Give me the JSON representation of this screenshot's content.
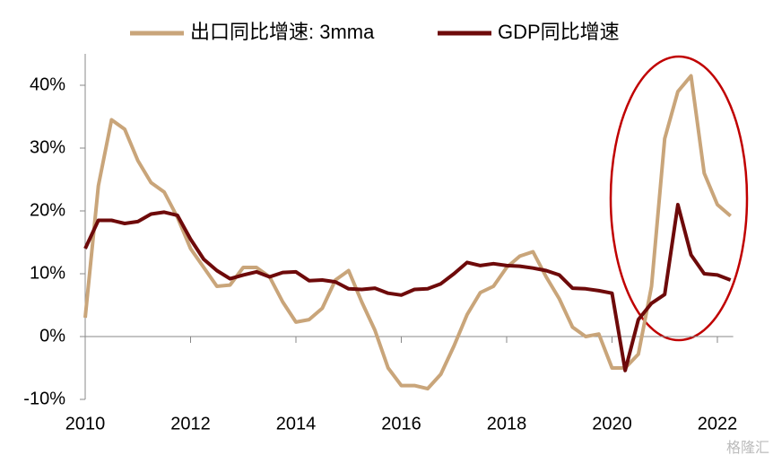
{
  "chart_data": {
    "type": "line",
    "x": [
      2010,
      2010.25,
      2010.5,
      2010.75,
      2011,
      2011.25,
      2011.5,
      2011.75,
      2012,
      2012.25,
      2012.5,
      2012.75,
      2013,
      2013.25,
      2013.5,
      2013.75,
      2014,
      2014.25,
      2014.5,
      2014.75,
      2015,
      2015.25,
      2015.5,
      2015.75,
      2016,
      2016.25,
      2016.5,
      2016.75,
      2017,
      2017.25,
      2017.5,
      2017.75,
      2018,
      2018.25,
      2018.5,
      2018.75,
      2019,
      2019.25,
      2019.5,
      2019.75,
      2020,
      2020.25,
      2020.5,
      2020.75,
      2021,
      2021.25,
      2021.5,
      2021.75,
      2022,
      2022.25
    ],
    "series": [
      {
        "name": "出口同比增速: 3mma",
        "color": "#c9a57a",
        "values": [
          3,
          24,
          34.5,
          33,
          28,
          24.5,
          23,
          19,
          14,
          11,
          8,
          8.2,
          11,
          11,
          9.5,
          5.5,
          2.3,
          2.7,
          4.5,
          9,
          10.5,
          5.5,
          1,
          -5,
          -7.8,
          -7.8,
          -8.3,
          -6,
          -1.5,
          3.5,
          7,
          8,
          11,
          12.8,
          13.5,
          9.5,
          6,
          1.5,
          0,
          0.4,
          -5,
          -5,
          -2.8,
          8,
          31.5,
          39,
          41.5,
          26,
          21,
          19.2
        ]
      },
      {
        "name": "GDP同比增速",
        "color": "#6e0a0a",
        "values": [
          14,
          18.5,
          18.5,
          18,
          18.3,
          19.5,
          19.8,
          19.3,
          15.5,
          12.3,
          10.5,
          9.2,
          9.8,
          10.3,
          9.5,
          10.2,
          10.3,
          8.9,
          9,
          8.7,
          7.6,
          7.5,
          7.7,
          6.9,
          6.6,
          7.5,
          7.6,
          8.4,
          10,
          11.8,
          11.3,
          11.6,
          11.3,
          11.2,
          10.9,
          10.5,
          9.8,
          7.7,
          7.6,
          7.3,
          6.9,
          -5.4,
          2.7,
          5.3,
          6.7,
          21,
          13,
          10,
          9.8,
          9
        ]
      }
    ],
    "xlim": [
      2010,
      2022.3
    ],
    "xticks": [
      2010,
      2012,
      2014,
      2016,
      2018,
      2020,
      2022
    ],
    "ylim": [
      -10,
      45
    ],
    "yticks": [
      {
        "value": -10,
        "label": "-10%"
      },
      {
        "value": 0,
        "label": "0%"
      },
      {
        "value": 10,
        "label": "10%"
      },
      {
        "value": 20,
        "label": "20%"
      },
      {
        "value": 30,
        "label": "30%"
      },
      {
        "value": 40,
        "label": "40%"
      }
    ],
    "legend": "top",
    "watermark": "格隆汇"
  }
}
